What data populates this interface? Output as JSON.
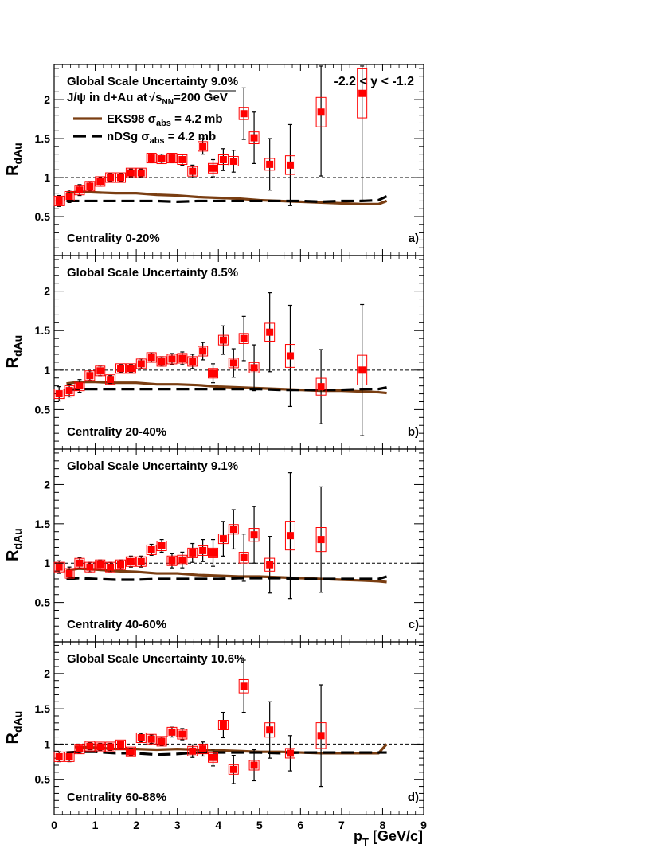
{
  "figure": {
    "ylabel_main": "R",
    "ylabel_sub": "dAu",
    "xlabel_main": "p",
    "xlabel_sub": "T",
    "xlabel_unit": "[GeV/c]",
    "x_ticks": [
      "0",
      "1",
      "2",
      "3",
      "4",
      "5",
      "6",
      "7",
      "8",
      "9"
    ],
    "rapidity_label": "-2.2 < y < -1.2",
    "reference_line": 1,
    "colors": {
      "data": "#ff0000",
      "eks98": "#7a3e12",
      "ndsg": "#000000",
      "errbar": "#000000"
    }
  },
  "legend": {
    "line1": "J/ψ in d+Au at",
    "sqrt": "s",
    "sqrt_sub": "NN",
    "line1_tail": "=200 GeV",
    "eks_prefix": "EKS98 σ",
    "eks_sub": "abs",
    "eks_tail": " = 4.2 mb",
    "ndsg_prefix": "nDSg σ",
    "ndsg_sub": "abs",
    "ndsg_tail": " = 4.2 mb"
  },
  "chart_data": [
    {
      "type": "scatter",
      "panel": "a)",
      "centrality": "Centrality 0-20%",
      "uncertainty": "Global Scale Uncertainty 9.0%",
      "xlim": [
        0,
        9
      ],
      "ylim": [
        0,
        2.45
      ],
      "y_ticks": [
        "0.5",
        "1",
        "1.5",
        "2"
      ],
      "x": [
        0.12,
        0.37,
        0.62,
        0.87,
        1.12,
        1.37,
        1.62,
        1.87,
        2.12,
        2.37,
        2.62,
        2.87,
        3.12,
        3.37,
        3.62,
        3.87,
        4.12,
        4.37,
        4.62,
        4.87,
        5.25,
        5.75,
        6.5,
        7.5
      ],
      "y": [
        0.7,
        0.76,
        0.84,
        0.89,
        0.95,
        1.0,
        1.0,
        1.06,
        1.06,
        1.25,
        1.24,
        1.25,
        1.23,
        1.08,
        1.4,
        1.12,
        1.23,
        1.21,
        1.82,
        1.51,
        1.17,
        1.16,
        1.84,
        2.08
      ],
      "yerr": [
        0.07,
        0.08,
        0.07,
        0.06,
        0.06,
        0.05,
        0.05,
        0.05,
        0.05,
        0.06,
        0.06,
        0.06,
        0.07,
        0.08,
        0.1,
        0.11,
        0.14,
        0.14,
        0.33,
        0.33,
        0.33,
        0.52,
        0.82,
        1.37
      ],
      "eks98": {
        "x": [
          0.3,
          0.6,
          1.0,
          1.5,
          2.0,
          2.5,
          3.0,
          3.5,
          4.0,
          4.5,
          5.0,
          5.5,
          6.0,
          6.5,
          7.0,
          7.5,
          7.9,
          8.1
        ],
        "y": [
          0.8,
          0.82,
          0.81,
          0.8,
          0.8,
          0.78,
          0.77,
          0.75,
          0.74,
          0.73,
          0.71,
          0.7,
          0.69,
          0.68,
          0.67,
          0.66,
          0.66,
          0.7
        ]
      },
      "ndsg": {
        "x": [
          0.3,
          0.6,
          1.0,
          1.5,
          2.0,
          2.5,
          3.0,
          3.5,
          4.0,
          4.5,
          5.0,
          5.5,
          6.0,
          6.5,
          7.0,
          7.5,
          7.9,
          8.1
        ],
        "y": [
          0.7,
          0.7,
          0.7,
          0.7,
          0.7,
          0.7,
          0.69,
          0.7,
          0.7,
          0.7,
          0.7,
          0.7,
          0.7,
          0.69,
          0.7,
          0.7,
          0.71,
          0.76
        ]
      }
    },
    {
      "type": "scatter",
      "panel": "b)",
      "centrality": "Centrality 20-40%",
      "uncertainty": "Global Scale Uncertainty 8.5%",
      "xlim": [
        0,
        9
      ],
      "ylim": [
        0,
        2.45
      ],
      "y_ticks": [
        "0.5",
        "1",
        "1.5",
        "2"
      ],
      "x": [
        0.12,
        0.37,
        0.62,
        0.87,
        1.12,
        1.37,
        1.62,
        1.87,
        2.12,
        2.37,
        2.62,
        2.87,
        3.12,
        3.37,
        3.62,
        3.87,
        4.12,
        4.37,
        4.62,
        4.87,
        5.25,
        5.75,
        6.5,
        7.5
      ],
      "y": [
        0.7,
        0.74,
        0.8,
        0.93,
        0.99,
        0.88,
        1.02,
        1.02,
        1.08,
        1.16,
        1.11,
        1.14,
        1.15,
        1.11,
        1.24,
        0.96,
        1.38,
        1.09,
        1.4,
        1.03,
        1.48,
        1.18,
        0.79,
        1.0
      ],
      "yerr": [
        0.09,
        0.08,
        0.08,
        0.06,
        0.06,
        0.05,
        0.05,
        0.05,
        0.06,
        0.06,
        0.06,
        0.07,
        0.08,
        0.09,
        0.11,
        0.12,
        0.18,
        0.18,
        0.28,
        0.29,
        0.5,
        0.64,
        0.47,
        0.83
      ],
      "eks98": {
        "x": [
          0.3,
          0.6,
          1.0,
          1.5,
          2.0,
          2.5,
          3.0,
          3.5,
          4.0,
          4.5,
          5.0,
          5.5,
          6.0,
          6.5,
          7.0,
          7.5,
          7.9,
          8.1
        ],
        "y": [
          0.83,
          0.85,
          0.85,
          0.84,
          0.84,
          0.82,
          0.82,
          0.81,
          0.79,
          0.78,
          0.77,
          0.76,
          0.75,
          0.74,
          0.74,
          0.73,
          0.72,
          0.71
        ]
      },
      "ndsg": {
        "x": [
          0.3,
          0.6,
          1.0,
          1.5,
          2.0,
          2.5,
          3.0,
          3.5,
          4.0,
          4.5,
          5.0,
          5.5,
          6.0,
          6.5,
          7.0,
          7.5,
          7.9,
          8.1
        ],
        "y": [
          0.75,
          0.76,
          0.76,
          0.76,
          0.76,
          0.76,
          0.76,
          0.76,
          0.76,
          0.76,
          0.76,
          0.75,
          0.75,
          0.75,
          0.75,
          0.76,
          0.76,
          0.78
        ]
      }
    },
    {
      "type": "scatter",
      "panel": "c)",
      "centrality": "Centrality 40-60%",
      "uncertainty": "Global Scale Uncertainty 9.1%",
      "xlim": [
        0,
        9
      ],
      "ylim": [
        0,
        2.45
      ],
      "y_ticks": [
        "0.5",
        "1",
        "1.5",
        "2"
      ],
      "x": [
        0.12,
        0.37,
        0.62,
        0.87,
        1.12,
        1.37,
        1.62,
        1.87,
        2.12,
        2.37,
        2.62,
        2.87,
        3.12,
        3.37,
        3.62,
        3.87,
        4.12,
        4.37,
        4.62,
        4.87,
        5.25,
        5.75,
        6.5
      ],
      "y": [
        0.95,
        0.87,
        1.0,
        0.95,
        0.98,
        0.95,
        0.98,
        1.02,
        1.02,
        1.17,
        1.22,
        1.03,
        1.04,
        1.13,
        1.16,
        1.13,
        1.31,
        1.43,
        1.07,
        1.36,
        0.98,
        1.35,
        1.3
      ],
      "yerr": [
        0.08,
        0.08,
        0.07,
        0.06,
        0.06,
        0.06,
        0.06,
        0.07,
        0.07,
        0.07,
        0.08,
        0.09,
        0.1,
        0.12,
        0.14,
        0.17,
        0.22,
        0.25,
        0.3,
        0.36,
        0.36,
        0.8,
        0.67
      ],
      "eks98": {
        "x": [
          0.3,
          0.6,
          1.0,
          1.5,
          2.0,
          2.5,
          3.0,
          3.5,
          4.0,
          4.5,
          5.0,
          5.5,
          6.0,
          6.5,
          7.0,
          7.5,
          7.9,
          8.1
        ],
        "y": [
          0.91,
          0.93,
          0.92,
          0.9,
          0.89,
          0.87,
          0.87,
          0.85,
          0.84,
          0.83,
          0.83,
          0.82,
          0.81,
          0.8,
          0.79,
          0.78,
          0.77,
          0.76
        ]
      },
      "ndsg": {
        "x": [
          0.3,
          0.6,
          1.0,
          1.5,
          2.0,
          2.5,
          3.0,
          3.5,
          4.0,
          4.5,
          5.0,
          5.5,
          6.0,
          6.5,
          7.0,
          7.5,
          7.9,
          8.1
        ],
        "y": [
          0.8,
          0.81,
          0.8,
          0.79,
          0.79,
          0.8,
          0.8,
          0.8,
          0.8,
          0.81,
          0.81,
          0.81,
          0.8,
          0.8,
          0.8,
          0.8,
          0.8,
          0.83
        ]
      }
    },
    {
      "type": "scatter",
      "panel": "d)",
      "centrality": "Centrality 60-88%",
      "uncertainty": "Global Scale Uncertainty 10.6%",
      "xlim": [
        0,
        9
      ],
      "ylim": [
        0,
        2.45
      ],
      "y_ticks": [
        "0.5",
        "1",
        "1.5",
        "2"
      ],
      "x": [
        0.12,
        0.37,
        0.62,
        0.87,
        1.12,
        1.37,
        1.62,
        1.87,
        2.12,
        2.37,
        2.62,
        2.87,
        3.12,
        3.37,
        3.62,
        3.87,
        4.12,
        4.37,
        4.62,
        4.87,
        5.25,
        5.75,
        6.5
      ],
      "y": [
        0.82,
        0.82,
        0.93,
        0.97,
        0.96,
        0.96,
        0.99,
        0.89,
        1.09,
        1.07,
        1.04,
        1.17,
        1.14,
        0.9,
        0.93,
        0.81,
        1.27,
        0.64,
        1.82,
        0.7,
        1.2,
        0.87,
        1.12
      ],
      "yerr": [
        0.07,
        0.07,
        0.06,
        0.05,
        0.05,
        0.05,
        0.05,
        0.05,
        0.06,
        0.06,
        0.06,
        0.07,
        0.08,
        0.09,
        0.1,
        0.12,
        0.18,
        0.2,
        0.37,
        0.22,
        0.4,
        0.25,
        0.72
      ],
      "eks98": {
        "x": [
          0.5,
          1.0,
          1.5,
          2.0,
          2.5,
          3.0,
          3.5,
          4.0,
          4.5,
          5.0,
          5.5,
          6.0,
          6.5,
          7.0,
          7.5,
          7.9,
          8.1
        ],
        "y": [
          0.96,
          0.95,
          0.93,
          0.93,
          0.92,
          0.93,
          0.92,
          0.91,
          0.9,
          0.89,
          0.89,
          0.88,
          0.87,
          0.87,
          0.87,
          0.87,
          1.0
        ]
      },
      "ndsg": {
        "x": [
          0.3,
          0.6,
          1.0,
          1.5,
          2.0,
          2.5,
          3.0,
          3.5,
          4.0,
          4.5,
          5.0,
          5.5,
          6.0,
          6.5,
          7.0,
          7.5,
          7.9,
          8.1
        ],
        "y": [
          0.88,
          0.89,
          0.89,
          0.87,
          0.87,
          0.85,
          0.86,
          0.88,
          0.88,
          0.88,
          0.88,
          0.87,
          0.88,
          0.88,
          0.88,
          0.88,
          0.88,
          0.88
        ]
      }
    }
  ]
}
